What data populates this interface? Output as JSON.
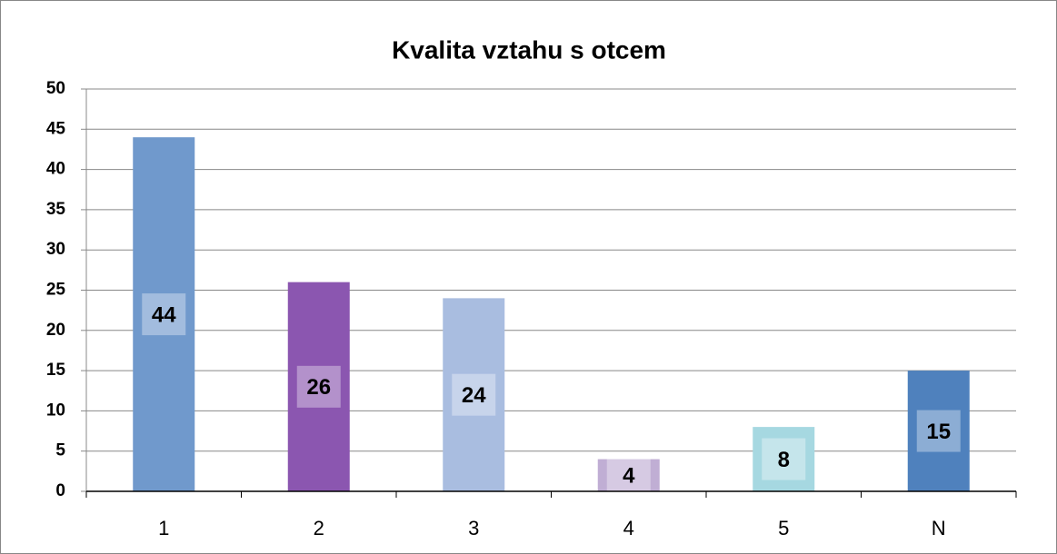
{
  "chart_data": {
    "type": "bar",
    "title": "Kvalita vztahu s otcem",
    "categories": [
      "1",
      "2",
      "3",
      "4",
      "5",
      "N"
    ],
    "values": [
      44,
      26,
      24,
      4,
      8,
      15
    ],
    "colors": [
      "#7099cc",
      "#8b56b0",
      "#a9bde0",
      "#c0aed4",
      "#a6d8e1",
      "#4f81bd"
    ],
    "ylim": [
      0,
      50
    ],
    "yticks": [
      0,
      5,
      10,
      15,
      20,
      25,
      30,
      35,
      40,
      45,
      50
    ],
    "grid": true
  }
}
